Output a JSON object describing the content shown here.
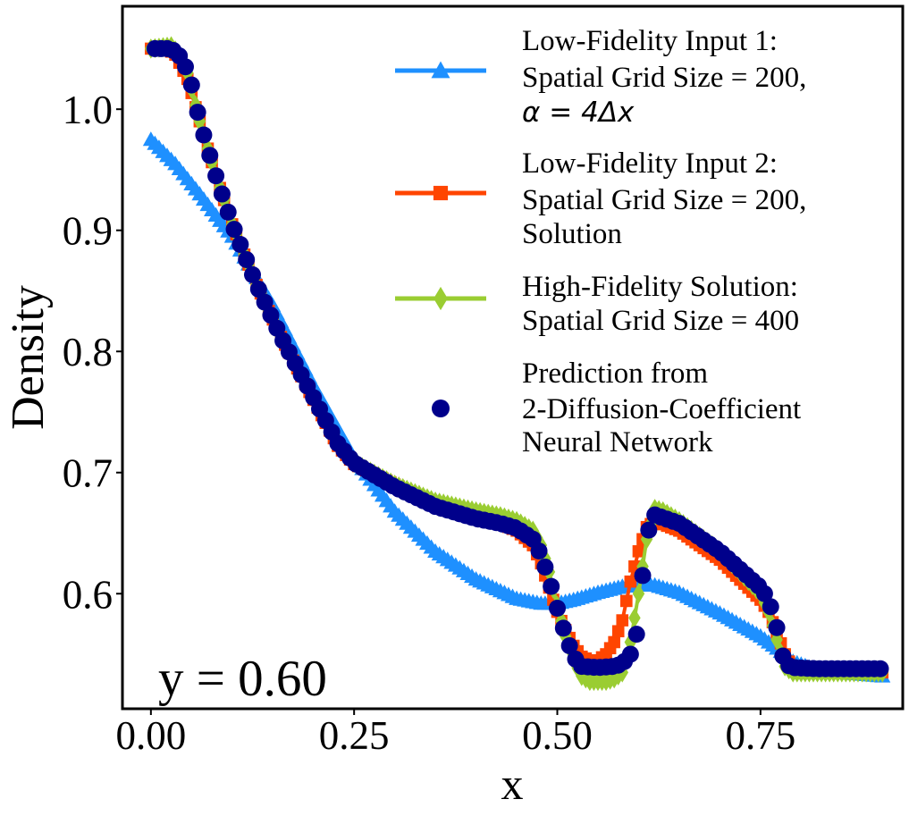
{
  "chart_data": {
    "type": "line",
    "xlabel": "x",
    "ylabel": "Density",
    "xlim": [
      -0.035,
      0.925
    ],
    "ylim": [
      0.505,
      1.085
    ],
    "xticks": [
      0.0,
      0.25,
      0.5,
      0.75
    ],
    "xtick_labels": [
      "0.00",
      "0.25",
      "0.50",
      "0.75"
    ],
    "yticks": [
      0.6,
      0.7,
      0.8,
      0.9,
      1.0
    ],
    "ytick_labels": [
      "0.6",
      "0.7",
      "0.8",
      "0.9",
      "1.0"
    ],
    "annotation": "y = 0.60",
    "grid": false,
    "legend_position": "upper-right",
    "series": [
      {
        "key": "lf1",
        "legend_lines": [
          "Low-Fidelity Input 1:",
          "Spatial Grid Size = 200,"
        ],
        "legend_math": "α = 4Δx",
        "color": "#1E90FF",
        "marker": "triangle",
        "points": [
          [
            0.0,
            0.975
          ],
          [
            0.03,
            0.955
          ],
          [
            0.06,
            0.93
          ],
          [
            0.1,
            0.895
          ],
          [
            0.15,
            0.838
          ],
          [
            0.2,
            0.772
          ],
          [
            0.25,
            0.712
          ],
          [
            0.3,
            0.668
          ],
          [
            0.35,
            0.635
          ],
          [
            0.4,
            0.612
          ],
          [
            0.45,
            0.596
          ],
          [
            0.48,
            0.592
          ],
          [
            0.5,
            0.592
          ],
          [
            0.52,
            0.595
          ],
          [
            0.55,
            0.601
          ],
          [
            0.58,
            0.606
          ],
          [
            0.6,
            0.607
          ],
          [
            0.62,
            0.607
          ],
          [
            0.65,
            0.601
          ],
          [
            0.7,
            0.584
          ],
          [
            0.75,
            0.565
          ],
          [
            0.77,
            0.555
          ],
          [
            0.79,
            0.544
          ],
          [
            0.82,
            0.537
          ],
          [
            0.85,
            0.535
          ],
          [
            0.9,
            0.532
          ]
        ]
      },
      {
        "key": "lf2",
        "legend_lines": [
          "Low-Fidelity Input 2:",
          "Spatial Grid Size = 200,",
          "Solution"
        ],
        "color": "#FF4500",
        "marker": "square",
        "points": [
          [
            0.0,
            1.05
          ],
          [
            0.02,
            1.05
          ],
          [
            0.03,
            1.045
          ],
          [
            0.045,
            1.025
          ],
          [
            0.06,
            0.99
          ],
          [
            0.08,
            0.945
          ],
          [
            0.1,
            0.905
          ],
          [
            0.13,
            0.855
          ],
          [
            0.16,
            0.812
          ],
          [
            0.2,
            0.76
          ],
          [
            0.23,
            0.722
          ],
          [
            0.25,
            0.707
          ],
          [
            0.3,
            0.69
          ],
          [
            0.35,
            0.675
          ],
          [
            0.4,
            0.665
          ],
          [
            0.43,
            0.658
          ],
          [
            0.45,
            0.652
          ],
          [
            0.47,
            0.64
          ],
          [
            0.48,
            0.625
          ],
          [
            0.49,
            0.605
          ],
          [
            0.5,
            0.585
          ],
          [
            0.51,
            0.57
          ],
          [
            0.52,
            0.557
          ],
          [
            0.53,
            0.548
          ],
          [
            0.54,
            0.545
          ],
          [
            0.55,
            0.545
          ],
          [
            0.56,
            0.55
          ],
          [
            0.57,
            0.56
          ],
          [
            0.58,
            0.578
          ],
          [
            0.59,
            0.61
          ],
          [
            0.6,
            0.635
          ],
          [
            0.61,
            0.655
          ],
          [
            0.62,
            0.66
          ],
          [
            0.65,
            0.652
          ],
          [
            0.7,
            0.628
          ],
          [
            0.75,
            0.595
          ],
          [
            0.76,
            0.585
          ],
          [
            0.77,
            0.568
          ],
          [
            0.78,
            0.55
          ],
          [
            0.79,
            0.538
          ],
          [
            0.82,
            0.535
          ],
          [
            0.9,
            0.535
          ]
        ]
      },
      {
        "key": "hf",
        "legend_lines": [
          "High-Fidelity Solution:",
          "Spatial Grid Size = 400"
        ],
        "color": "#9ACD32",
        "marker": "diamond",
        "points": [
          [
            0.0,
            1.05
          ],
          [
            0.025,
            1.052
          ],
          [
            0.035,
            1.045
          ],
          [
            0.045,
            1.03
          ],
          [
            0.06,
            0.99
          ],
          [
            0.08,
            0.945
          ],
          [
            0.1,
            0.905
          ],
          [
            0.13,
            0.855
          ],
          [
            0.16,
            0.812
          ],
          [
            0.2,
            0.762
          ],
          [
            0.23,
            0.724
          ],
          [
            0.25,
            0.708
          ],
          [
            0.3,
            0.69
          ],
          [
            0.35,
            0.676
          ],
          [
            0.4,
            0.668
          ],
          [
            0.43,
            0.664
          ],
          [
            0.45,
            0.66
          ],
          [
            0.47,
            0.652
          ],
          [
            0.48,
            0.64
          ],
          [
            0.49,
            0.618
          ],
          [
            0.5,
            0.59
          ],
          [
            0.51,
            0.565
          ],
          [
            0.52,
            0.545
          ],
          [
            0.53,
            0.532
          ],
          [
            0.54,
            0.528
          ],
          [
            0.56,
            0.528
          ],
          [
            0.57,
            0.53
          ],
          [
            0.58,
            0.535
          ],
          [
            0.59,
            0.56
          ],
          [
            0.6,
            0.6
          ],
          [
            0.61,
            0.645
          ],
          [
            0.62,
            0.67
          ],
          [
            0.63,
            0.668
          ],
          [
            0.65,
            0.66
          ],
          [
            0.7,
            0.635
          ],
          [
            0.75,
            0.6
          ],
          [
            0.76,
            0.585
          ],
          [
            0.77,
            0.562
          ],
          [
            0.78,
            0.54
          ],
          [
            0.79,
            0.535
          ],
          [
            0.82,
            0.535
          ],
          [
            0.9,
            0.535
          ]
        ]
      },
      {
        "key": "nn",
        "legend_lines": [
          "Prediction from",
          "2-Diffusion-Coefficient",
          "Neural Network"
        ],
        "color": "#00008B",
        "marker": "circle",
        "points": [
          [
            0.005,
            1.05
          ],
          [
            0.02,
            1.05
          ],
          [
            0.03,
            1.048
          ],
          [
            0.04,
            1.04
          ],
          [
            0.05,
            1.02
          ],
          [
            0.06,
            0.99
          ],
          [
            0.08,
            0.945
          ],
          [
            0.1,
            0.905
          ],
          [
            0.13,
            0.855
          ],
          [
            0.16,
            0.812
          ],
          [
            0.2,
            0.762
          ],
          [
            0.23,
            0.724
          ],
          [
            0.25,
            0.708
          ],
          [
            0.3,
            0.688
          ],
          [
            0.35,
            0.672
          ],
          [
            0.4,
            0.662
          ],
          [
            0.43,
            0.658
          ],
          [
            0.45,
            0.654
          ],
          [
            0.47,
            0.645
          ],
          [
            0.48,
            0.632
          ],
          [
            0.49,
            0.612
          ],
          [
            0.5,
            0.588
          ],
          [
            0.51,
            0.566
          ],
          [
            0.52,
            0.548
          ],
          [
            0.53,
            0.54
          ],
          [
            0.55,
            0.539
          ],
          [
            0.57,
            0.54
          ],
          [
            0.58,
            0.542
          ],
          [
            0.59,
            0.55
          ],
          [
            0.6,
            0.572
          ],
          [
            0.605,
            0.615
          ],
          [
            0.61,
            0.645
          ],
          [
            0.615,
            0.66
          ],
          [
            0.62,
            0.665
          ],
          [
            0.65,
            0.658
          ],
          [
            0.7,
            0.635
          ],
          [
            0.75,
            0.605
          ],
          [
            0.76,
            0.595
          ],
          [
            0.77,
            0.572
          ],
          [
            0.775,
            0.555
          ],
          [
            0.78,
            0.542
          ],
          [
            0.79,
            0.539
          ],
          [
            0.82,
            0.538
          ],
          [
            0.9,
            0.538
          ]
        ]
      }
    ]
  }
}
